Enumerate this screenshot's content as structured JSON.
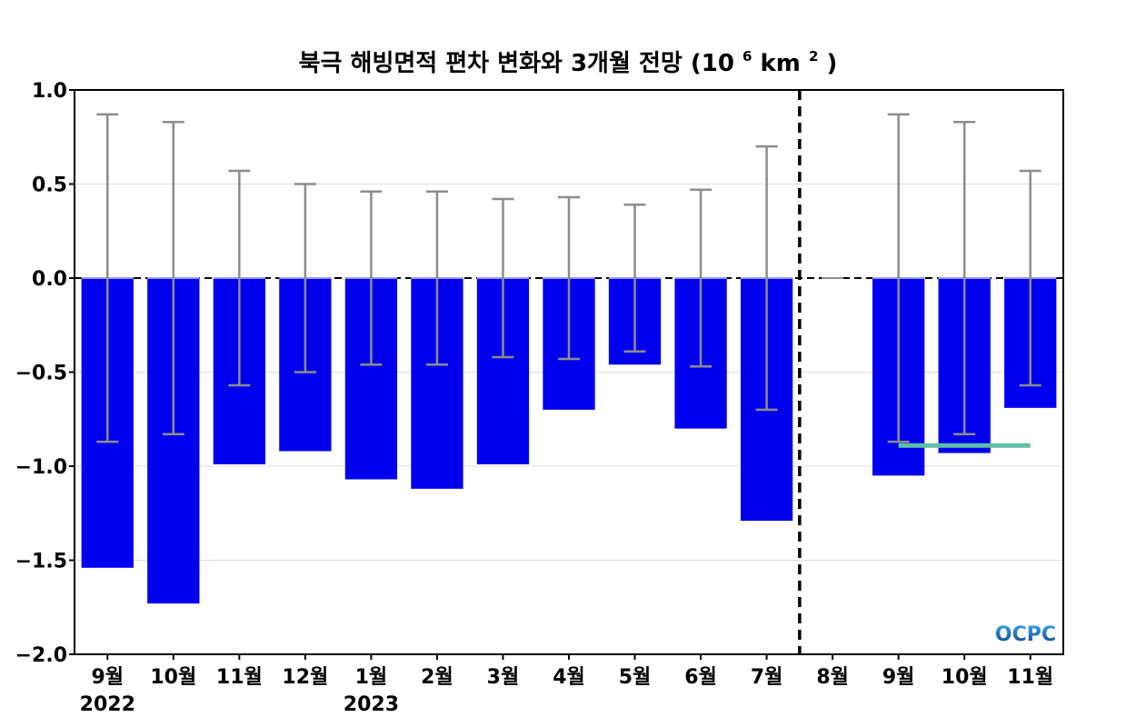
{
  "chart_data": {
    "type": "bar",
    "title": "북극 해빙면적 편차 변화와 3개월 전망",
    "title_unit_base": "(10",
    "title_unit_exp": "6",
    "title_unit_mid": "km",
    "title_unit_exp2": "2",
    "title_unit_end": ")",
    "ylim": [
      -2.0,
      1.0
    ],
    "yticks": [
      "1.0",
      "0.5",
      "0.0",
      "−0.5",
      "−1.0",
      "−1.5",
      "−2.0"
    ],
    "ytick_values": [
      1.0,
      0.5,
      0.0,
      -0.5,
      -1.0,
      -1.5,
      -2.0
    ],
    "grid": true,
    "categories": [
      "9월",
      "10월",
      "11월",
      "12월",
      "1월",
      "2월",
      "3월",
      "4월",
      "5월",
      "6월",
      "7월",
      "8월",
      "9월",
      "10월",
      "11월"
    ],
    "year_labels": [
      {
        "index": 0,
        "label": "2022"
      },
      {
        "index": 4,
        "label": "2023"
      }
    ],
    "values": [
      -1.54,
      -1.73,
      -0.99,
      -0.92,
      -1.07,
      -1.12,
      -0.99,
      -0.7,
      -0.46,
      -0.8,
      -1.29,
      0.0,
      -1.05,
      -0.93,
      -0.69
    ],
    "error_bars": [
      0.87,
      0.83,
      0.57,
      0.5,
      0.46,
      0.46,
      0.42,
      0.43,
      0.39,
      0.47,
      0.7,
      0.0,
      0.87,
      0.83,
      0.57
    ],
    "forecast_divider_after_index": 10.5,
    "forecast_line": {
      "from_index": 12,
      "to_index": 14,
      "value": -0.89
    },
    "colors": {
      "bar": "#0000ee",
      "error_bar": "#8c8c8c",
      "forecast_line": "#5fbfa5",
      "zero_line": "#000000",
      "grid": "#dddddd"
    },
    "logo_text": "OCPC"
  }
}
